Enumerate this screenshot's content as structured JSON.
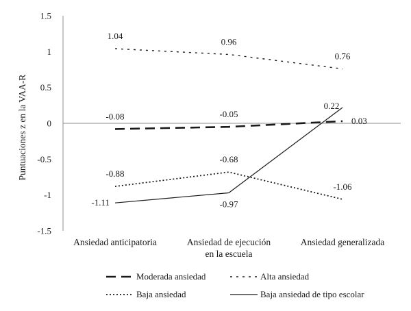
{
  "chart_data": {
    "type": "line",
    "title": "",
    "xlabel": "",
    "ylabel": "Puntuaciones z en la VAA-R",
    "ylim": [
      -1.5,
      1.5
    ],
    "yticks": [
      "1.5",
      "1",
      "0.5",
      "0",
      "-0.5",
      "-1",
      "-1.5"
    ],
    "yticks_values": [
      1.5,
      1,
      0.5,
      0,
      -0.5,
      -1,
      -1.5
    ],
    "categories": [
      [
        "Ansiedad anticipatoria"
      ],
      [
        "Ansiedad de ejecución",
        "en la escuela"
      ],
      [
        "Ansiedad generalizada"
      ]
    ],
    "legend_position": "bottom",
    "series": [
      {
        "name": "Moderada ansiedad",
        "style": "long-dash",
        "values": [
          -0.08,
          -0.05,
          0.03
        ],
        "labels": [
          "-0.08",
          "-0.05",
          "0.03"
        ],
        "label_pos": [
          "above",
          "above",
          "right"
        ]
      },
      {
        "name": "Alta ansiedad",
        "style": "short-dash",
        "values": [
          1.04,
          0.96,
          0.76
        ],
        "labels": [
          "1.04",
          "0.96",
          "0.76"
        ],
        "label_pos": [
          "above",
          "above",
          "above"
        ]
      },
      {
        "name": "Baja ansiedad",
        "style": "dotted",
        "values": [
          -0.88,
          -0.68,
          -1.06
        ],
        "labels": [
          "-0.88",
          "-0.68",
          "-1.06"
        ],
        "label_pos": [
          "above",
          "above",
          "above"
        ]
      },
      {
        "name": "Baja ansiedad de tipo escolar",
        "style": "solid",
        "values": [
          -1.11,
          -0.97,
          0.22
        ],
        "labels": [
          "-1.11",
          "-0.97",
          "0.22"
        ],
        "label_pos": [
          "left",
          "below",
          "above-left"
        ]
      }
    ],
    "colors": {
      "line": "#1a1a1a",
      "axis": "#8c8c8c"
    }
  }
}
